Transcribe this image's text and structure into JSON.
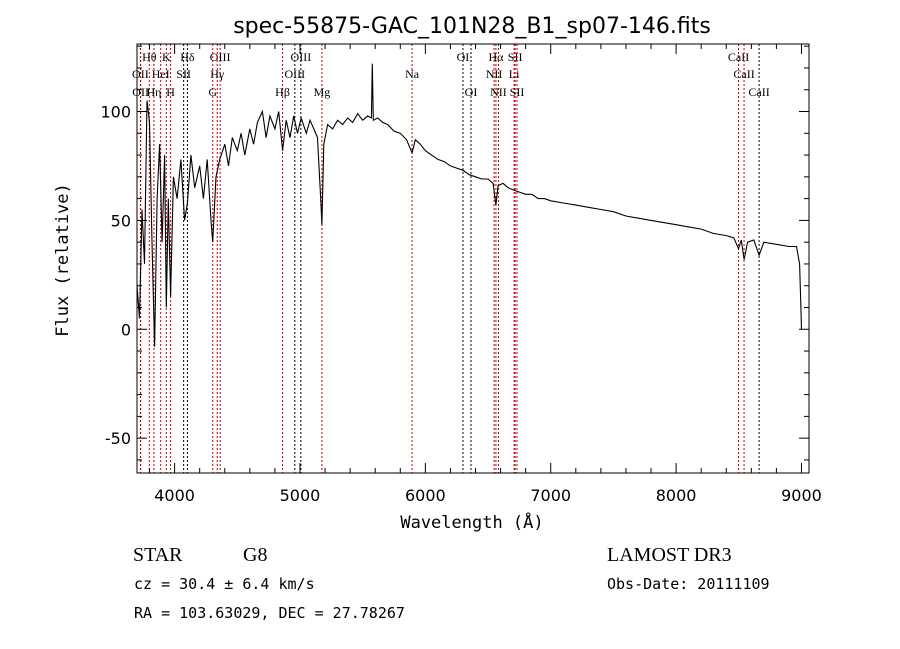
{
  "chart_data": {
    "type": "line",
    "title": "spec-55875-GAC_101N28_B1_sp07-146.fits",
    "xlabel": "Wavelength (Å)",
    "ylabel": "Flux (relative)",
    "xlim": [
      3700,
      9060
    ],
    "ylim": [
      -66,
      131
    ],
    "xticks": [
      4000,
      5000,
      6000,
      7000,
      8000,
      9000
    ],
    "yticks": [
      -50,
      0,
      50,
      100
    ],
    "grid": false,
    "series": [
      {
        "name": "spectrum",
        "color": "#000000",
        "points": [
          [
            3700,
            20
          ],
          [
            3720,
            5
          ],
          [
            3740,
            55
          ],
          [
            3760,
            30
          ],
          [
            3780,
            105
          ],
          [
            3800,
            95
          ],
          [
            3820,
            40
          ],
          [
            3840,
            -8
          ],
          [
            3860,
            60
          ],
          [
            3880,
            85
          ],
          [
            3900,
            40
          ],
          [
            3920,
            80
          ],
          [
            3934,
            10
          ],
          [
            3950,
            60
          ],
          [
            3968,
            15
          ],
          [
            3990,
            70
          ],
          [
            4020,
            60
          ],
          [
            4050,
            78
          ],
          [
            4080,
            50
          ],
          [
            4102,
            58
          ],
          [
            4130,
            80
          ],
          [
            4160,
            65
          ],
          [
            4200,
            75
          ],
          [
            4230,
            60
          ],
          [
            4260,
            78
          ],
          [
            4290,
            50
          ],
          [
            4304,
            40
          ],
          [
            4330,
            70
          ],
          [
            4360,
            78
          ],
          [
            4400,
            85
          ],
          [
            4430,
            75
          ],
          [
            4460,
            88
          ],
          [
            4500,
            82
          ],
          [
            4530,
            90
          ],
          [
            4560,
            80
          ],
          [
            4600,
            92
          ],
          [
            4630,
            85
          ],
          [
            4660,
            95
          ],
          [
            4700,
            100
          ],
          [
            4730,
            88
          ],
          [
            4760,
            98
          ],
          [
            4800,
            92
          ],
          [
            4830,
            100
          ],
          [
            4861,
            82
          ],
          [
            4890,
            96
          ],
          [
            4920,
            88
          ],
          [
            4950,
            98
          ],
          [
            4980,
            90
          ],
          [
            5010,
            97
          ],
          [
            5050,
            90
          ],
          [
            5080,
            96
          ],
          [
            5110,
            92
          ],
          [
            5140,
            88
          ],
          [
            5165,
            60
          ],
          [
            5175,
            48
          ],
          [
            5190,
            85
          ],
          [
            5220,
            94
          ],
          [
            5260,
            92
          ],
          [
            5300,
            96
          ],
          [
            5340,
            94
          ],
          [
            5380,
            97
          ],
          [
            5420,
            95
          ],
          [
            5460,
            99
          ],
          [
            5500,
            96
          ],
          [
            5540,
            98
          ],
          [
            5570,
            97
          ],
          [
            5577,
            122
          ],
          [
            5585,
            96
          ],
          [
            5620,
            97
          ],
          [
            5660,
            95
          ],
          [
            5700,
            94
          ],
          [
            5750,
            91
          ],
          [
            5800,
            90
          ],
          [
            5850,
            87
          ],
          [
            5894,
            81
          ],
          [
            5920,
            87
          ],
          [
            5960,
            85
          ],
          [
            6000,
            82
          ],
          [
            6050,
            80
          ],
          [
            6100,
            78
          ],
          [
            6150,
            77
          ],
          [
            6200,
            75
          ],
          [
            6250,
            74
          ],
          [
            6300,
            73
          ],
          [
            6350,
            71
          ],
          [
            6400,
            70
          ],
          [
            6450,
            69
          ],
          [
            6500,
            69
          ],
          [
            6540,
            67
          ],
          [
            6563,
            57
          ],
          [
            6580,
            66
          ],
          [
            6620,
            67
          ],
          [
            6660,
            65
          ],
          [
            6700,
            64
          ],
          [
            6750,
            63
          ],
          [
            6800,
            62
          ],
          [
            6850,
            62
          ],
          [
            6900,
            60
          ],
          [
            6950,
            60
          ],
          [
            7000,
            59
          ],
          [
            7100,
            58
          ],
          [
            7200,
            57
          ],
          [
            7300,
            56
          ],
          [
            7400,
            55
          ],
          [
            7500,
            54
          ],
          [
            7600,
            52
          ],
          [
            7700,
            51
          ],
          [
            7800,
            50
          ],
          [
            7900,
            49
          ],
          [
            8000,
            48
          ],
          [
            8100,
            47
          ],
          [
            8200,
            46
          ],
          [
            8300,
            44
          ],
          [
            8400,
            43
          ],
          [
            8460,
            42
          ],
          [
            8498,
            37
          ],
          [
            8520,
            41
          ],
          [
            8542,
            32
          ],
          [
            8570,
            40
          ],
          [
            8620,
            41
          ],
          [
            8662,
            34
          ],
          [
            8700,
            40
          ],
          [
            8800,
            39
          ],
          [
            8900,
            38
          ],
          [
            8960,
            38
          ],
          [
            8985,
            30
          ],
          [
            8995,
            10
          ],
          [
            9000,
            0
          ]
        ]
      }
    ],
    "lines": [
      {
        "label": "Hθ",
        "wave": 3798,
        "row": 1,
        "color": "#c00000"
      },
      {
        "label": "K",
        "wave": 3934,
        "row": 1,
        "color": "#c00000"
      },
      {
        "label": "Hδ",
        "wave": 4102,
        "row": 1,
        "color": "#000000"
      },
      {
        "label": "OIII",
        "wave": 4363,
        "row": 1,
        "color": "#c00000"
      },
      {
        "label": "OIII",
        "wave": 5007,
        "row": 1,
        "color": "#000000"
      },
      {
        "label": "OI",
        "wave": 6300,
        "row": 1,
        "color": "#000000"
      },
      {
        "label": "Hα",
        "wave": 6563,
        "row": 1,
        "color": "#c00000"
      },
      {
        "label": "SII",
        "wave": 6716,
        "row": 1,
        "color": "#c00000"
      },
      {
        "label": "CaII",
        "wave": 8498,
        "row": 1,
        "color": "#c00000"
      },
      {
        "label": "OII",
        "wave": 3727,
        "row": 2,
        "color": "#c00000"
      },
      {
        "label": "HeI",
        "wave": 3889,
        "row": 2,
        "color": "#c00000"
      },
      {
        "label": "SII",
        "wave": 4072,
        "row": 2,
        "color": "#000000"
      },
      {
        "label": "Hγ",
        "wave": 4340,
        "row": 2,
        "color": "#c00000"
      },
      {
        "label": "OIII",
        "wave": 4959,
        "row": 2,
        "color": "#000000"
      },
      {
        "label": "Na",
        "wave": 5894,
        "row": 2,
        "color": "#c00000"
      },
      {
        "label": "NII",
        "wave": 6548,
        "row": 2,
        "color": "#c00000"
      },
      {
        "label": "Li",
        "wave": 6708,
        "row": 2,
        "color": "#c00000"
      },
      {
        "label": "CaII",
        "wave": 8542,
        "row": 2,
        "color": "#c00000"
      },
      {
        "label": "OII",
        "wave": 3729,
        "row": 3,
        "color": "#c00000"
      },
      {
        "label": "Hη",
        "wave": 3835,
        "row": 3,
        "color": "#c00000"
      },
      {
        "label": "H",
        "wave": 3968,
        "row": 3,
        "color": "#c00000"
      },
      {
        "label": "G",
        "wave": 4304,
        "row": 3,
        "color": "#c00000"
      },
      {
        "label": "Hβ",
        "wave": 4861,
        "row": 3,
        "color": "#c00000"
      },
      {
        "label": "Mg",
        "wave": 5175,
        "row": 3,
        "color": "#c00000"
      },
      {
        "label": "OI",
        "wave": 6364,
        "row": 3,
        "color": "#000000"
      },
      {
        "label": "NII",
        "wave": 6583,
        "row": 3,
        "color": "#c00000"
      },
      {
        "label": "SII",
        "wave": 6731,
        "row": 3,
        "color": "#c00000"
      },
      {
        "label": "CaII",
        "wave": 8662,
        "row": 3,
        "color": "#000000"
      }
    ]
  },
  "info": {
    "class": "STAR",
    "subclass": "G8",
    "survey": "LAMOST DR3",
    "cz": "cz = 30.4 ± 6.4 km/s",
    "obs_date": "Obs-Date: 20111109",
    "radec": "RA = 103.63029, DEC =  27.78267"
  }
}
